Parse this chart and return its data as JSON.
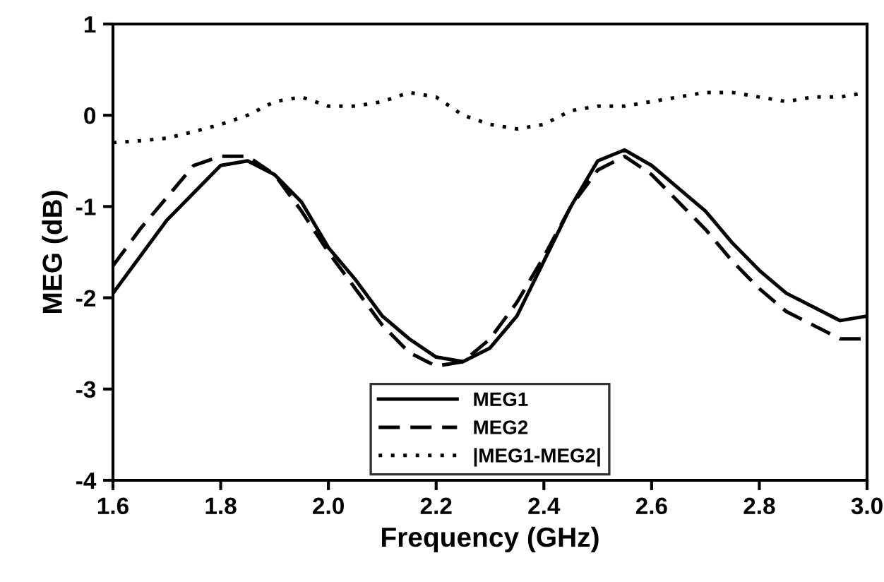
{
  "chart_data": {
    "type": "line",
    "xlabel": "Frequency (GHz)",
    "ylabel": "MEG (dB)",
    "xlim": [
      1.6,
      3.0
    ],
    "ylim": [
      -4,
      1
    ],
    "xticks": [
      {
        "value": 1.6,
        "label": "1.6"
      },
      {
        "value": 1.8,
        "label": "1.8"
      },
      {
        "value": 2.0,
        "label": "2.0"
      },
      {
        "value": 2.2,
        "label": "2.2"
      },
      {
        "value": 2.4,
        "label": "2.4"
      },
      {
        "value": 2.6,
        "label": "2.6"
      },
      {
        "value": 2.8,
        "label": "2.8"
      },
      {
        "value": 3.0,
        "label": "3.0"
      }
    ],
    "yticks": [
      -4,
      -3,
      -2,
      -1,
      0,
      1
    ],
    "grid": false,
    "legend": "bottom",
    "marker": "none",
    "x": [
      1.6,
      1.65,
      1.7,
      1.75,
      1.8,
      1.85,
      1.9,
      1.95,
      2.0,
      2.05,
      2.1,
      2.15,
      2.2,
      2.25,
      2.3,
      2.35,
      2.4,
      2.45,
      2.5,
      2.55,
      2.6,
      2.65,
      2.7,
      2.75,
      2.8,
      2.85,
      2.9,
      2.95,
      3.0
    ],
    "series": [
      {
        "name": "MEG1",
        "color": "#000000",
        "line_style": "solid",
        "values": [
          -1.95,
          -1.55,
          -1.15,
          -0.85,
          -0.55,
          -0.5,
          -0.65,
          -0.95,
          -1.45,
          -1.8,
          -2.2,
          -2.45,
          -2.65,
          -2.7,
          -2.55,
          -2.2,
          -1.6,
          -1.0,
          -0.5,
          -0.38,
          -0.55,
          -0.8,
          -1.05,
          -1.4,
          -1.7,
          -1.95,
          -2.1,
          -2.25,
          -2.2
        ]
      },
      {
        "name": "MEG2",
        "color": "#000000",
        "line_style": "dashed",
        "values": [
          -1.65,
          -1.25,
          -0.9,
          -0.55,
          -0.45,
          -0.45,
          -0.65,
          -1.05,
          -1.5,
          -1.9,
          -2.3,
          -2.6,
          -2.75,
          -2.7,
          -2.45,
          -2.05,
          -1.55,
          -1.0,
          -0.6,
          -0.45,
          -0.65,
          -0.95,
          -1.25,
          -1.6,
          -1.9,
          -2.15,
          -2.3,
          -2.45,
          -2.45
        ]
      },
      {
        "name": "|MEG1-MEG2|",
        "color": "#000000",
        "line_style": "dotted",
        "values": [
          -0.3,
          -0.28,
          -0.25,
          -0.18,
          -0.1,
          0.0,
          0.15,
          0.2,
          0.1,
          0.1,
          0.15,
          0.25,
          0.2,
          0.0,
          -0.1,
          -0.15,
          -0.1,
          0.05,
          0.1,
          0.1,
          0.15,
          0.2,
          0.25,
          0.25,
          0.2,
          0.15,
          0.2,
          0.2,
          0.25
        ]
      }
    ]
  }
}
